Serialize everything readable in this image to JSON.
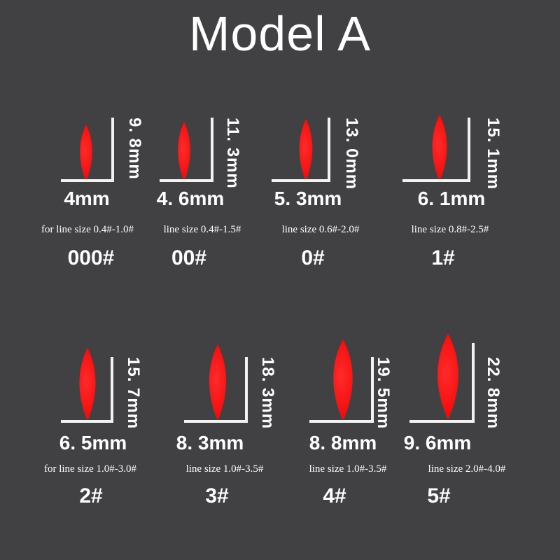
{
  "title": "Model A",
  "colors": {
    "background": "#414143",
    "bead": "#f50d0d",
    "text": "#ffffff"
  },
  "items": [
    {
      "size": "000#",
      "width": "4mm",
      "height": "9. 8mm",
      "line_size": "for line size 0.4#-1.0#"
    },
    {
      "size": "00#",
      "width": "4. 6mm",
      "height": "11. 3mm",
      "line_size": "line size 0.4#-1.5#"
    },
    {
      "size": "0#",
      "width": "5. 3mm",
      "height": "13. 0mm",
      "line_size": "line size 0.6#-2.0#"
    },
    {
      "size": "1#",
      "width": "6. 1mm",
      "height": "15. 1mm",
      "line_size": "line size 0.8#-2.5#"
    },
    {
      "size": "2#",
      "width": "6. 5mm",
      "height": "15. 7mm",
      "line_size": "for line size 1.0#-3.0#"
    },
    {
      "size": "3#",
      "width": "8. 3mm",
      "height": "18. 3mm",
      "line_size": "line size 1.0#-3.5#"
    },
    {
      "size": "4#",
      "width": "8. 8mm",
      "height": "19. 5mm",
      "line_size": "line size 1.0#-3.5#"
    },
    {
      "size": "5#",
      "width": "9. 6mm",
      "height": "22. 8mm",
      "line_size": "line size 2.0#-4.0#"
    }
  ]
}
